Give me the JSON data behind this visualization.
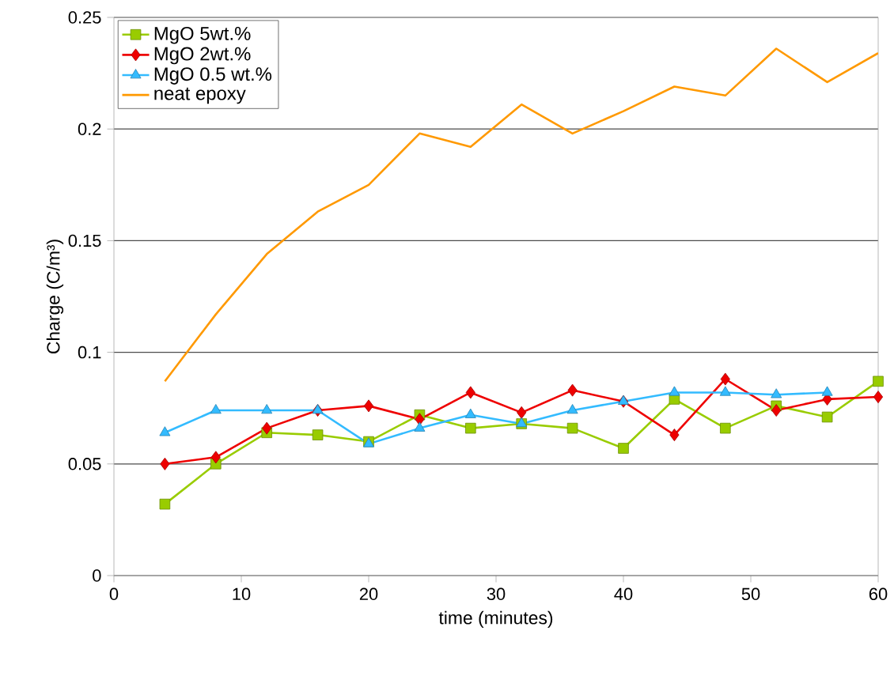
{
  "chart_data": {
    "type": "line",
    "xlabel": "time (minutes)",
    "ylabel": "Charge (C/m³)",
    "xlim": [
      0,
      60
    ],
    "ylim": [
      0,
      0.25
    ],
    "xticks": [
      0,
      10,
      20,
      30,
      40,
      50,
      60
    ],
    "yticks": [
      0,
      0.05,
      0.1,
      0.15,
      0.2,
      0.25
    ],
    "grid": "y",
    "legend": "top left",
    "series": [
      {
        "name": "MgO 5wt.%",
        "color": "#99cc00",
        "marker": "square",
        "x": [
          4,
          8,
          12,
          16,
          20,
          24,
          28,
          32,
          36,
          40,
          44,
          48,
          52,
          56,
          60
        ],
        "values": [
          0.032,
          0.05,
          0.064,
          0.063,
          0.06,
          0.072,
          0.066,
          0.068,
          0.066,
          0.057,
          0.079,
          0.066,
          0.076,
          0.071,
          0.087
        ]
      },
      {
        "name": "MgO 2wt.%",
        "color": "#ee0000",
        "marker": "diamond",
        "x": [
          4,
          8,
          12,
          16,
          20,
          24,
          28,
          32,
          36,
          40,
          44,
          48,
          52,
          56,
          60
        ],
        "values": [
          0.05,
          0.053,
          0.066,
          0.074,
          0.076,
          0.07,
          0.082,
          0.073,
          0.083,
          0.078,
          0.063,
          0.088,
          0.074,
          0.079,
          0.08
        ]
      },
      {
        "name": "MgO 0.5 wt.%",
        "color": "#33bbff",
        "marker": "triangle",
        "x": [
          4,
          8,
          12,
          16,
          20,
          24,
          28,
          32,
          36,
          40,
          44,
          48,
          52,
          56
        ],
        "values": [
          0.064,
          0.074,
          0.074,
          0.074,
          0.059,
          0.066,
          0.072,
          0.068,
          0.074,
          0.078,
          0.082,
          0.082,
          0.081,
          0.082
        ]
      },
      {
        "name": "neat epoxy",
        "color": "#ff9900",
        "marker": "none",
        "x": [
          4,
          8,
          12,
          16,
          20,
          24,
          28,
          32,
          36,
          40,
          44,
          48,
          52,
          56,
          60
        ],
        "values": [
          0.087,
          0.117,
          0.144,
          0.163,
          0.175,
          0.198,
          0.192,
          0.211,
          0.198,
          0.208,
          0.219,
          0.215,
          0.236,
          0.221,
          0.234
        ]
      }
    ]
  }
}
